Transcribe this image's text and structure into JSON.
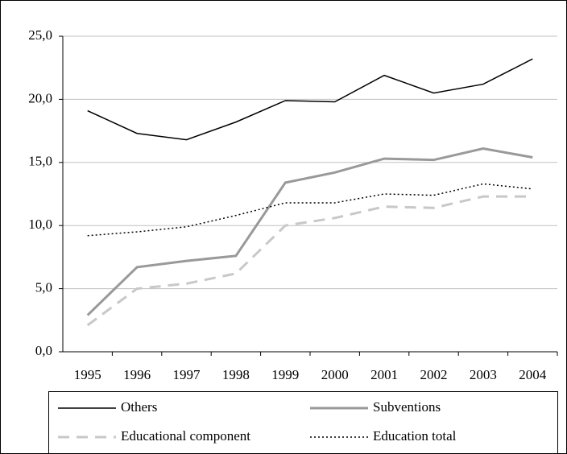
{
  "chart_data": {
    "type": "line",
    "categories": [
      "1995",
      "1996",
      "1997",
      "1998",
      "1999",
      "2000",
      "2001",
      "2002",
      "2003",
      "2004"
    ],
    "series": [
      {
        "name": "Others",
        "color": "#000000",
        "width": 1.5,
        "linestyle": "solid",
        "values": [
          19.1,
          17.3,
          16.8,
          18.2,
          19.9,
          19.8,
          21.9,
          20.5,
          21.2,
          23.2
        ]
      },
      {
        "name": "Subventions",
        "color": "#999999",
        "width": 3,
        "linestyle": "solid",
        "values": [
          2.9,
          6.7,
          7.2,
          7.6,
          13.4,
          14.2,
          15.3,
          15.2,
          16.1,
          15.4
        ]
      },
      {
        "name": "Educational component",
        "color": "#c8c8c8",
        "width": 3,
        "linestyle": "dashed",
        "values": [
          2.1,
          5.0,
          5.4,
          6.2,
          10.0,
          10.6,
          11.5,
          11.4,
          12.3,
          12.3
        ]
      },
      {
        "name": "Education total",
        "color": "#000000",
        "width": 1.5,
        "linestyle": "dotted",
        "values": [
          9.2,
          9.5,
          9.9,
          10.8,
          11.8,
          11.8,
          12.5,
          12.4,
          13.3,
          12.9
        ]
      }
    ],
    "ylim": [
      0,
      25
    ],
    "yticks": [
      {
        "value": 0,
        "label": "0,0"
      },
      {
        "value": 5,
        "label": "5,0"
      },
      {
        "value": 10,
        "label": "10,0"
      },
      {
        "value": 15,
        "label": "15,0"
      },
      {
        "value": 20,
        "label": "20,0"
      },
      {
        "value": 25,
        "label": "25,0"
      }
    ],
    "grid": true
  }
}
